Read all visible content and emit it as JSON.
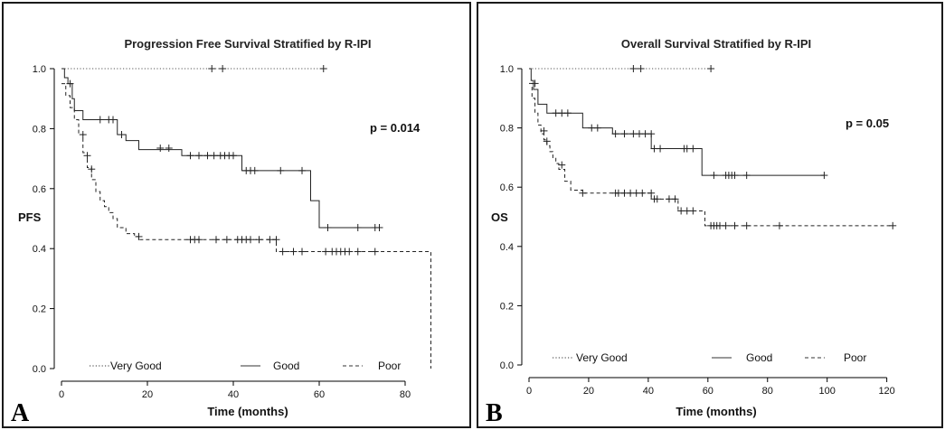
{
  "panels": [
    {
      "id": "A",
      "letter": "A",
      "pvalue": "p = 0.014"
    },
    {
      "id": "B",
      "letter": "B",
      "pvalue": "p = 0.05"
    }
  ],
  "legend": {
    "very_good": "Very Good",
    "good": "Good",
    "poor": "Poor"
  },
  "chart_data": [
    {
      "type": "line",
      "subtype": "kaplan-meier",
      "title": "Progression Free Survival Stratified by R-IPI",
      "xlabel": "Time (months)",
      "ylabel": "PFS",
      "xlim": [
        0,
        88
      ],
      "ylim": [
        0,
        1.0
      ],
      "xticks": [
        0,
        20,
        40,
        60,
        80
      ],
      "yticks": [
        0.0,
        0.2,
        0.4,
        0.6,
        0.8,
        1.0
      ],
      "ytick_labels": [
        "0.0",
        "0.2",
        "0.4",
        "0.6",
        "0.8",
        "1.0"
      ],
      "legend_position": "bottom",
      "grid": false,
      "series": [
        {
          "name": "Very Good",
          "dash": "dotted",
          "steps": [
            [
              0,
              1.0
            ],
            [
              61,
              1.0
            ]
          ],
          "censors": [
            [
              35,
              1.0
            ],
            [
              37.5,
              1.0
            ],
            [
              61,
              1.0
            ]
          ]
        },
        {
          "name": "Good",
          "dash": "solid",
          "steps": [
            [
              0,
              1.0
            ],
            [
              0.7,
              0.97
            ],
            [
              1.5,
              0.95
            ],
            [
              2.5,
              0.9
            ],
            [
              3,
              0.86
            ],
            [
              5,
              0.83
            ],
            [
              13,
              0.78
            ],
            [
              15,
              0.76
            ],
            [
              18,
              0.73
            ],
            [
              28,
              0.71
            ],
            [
              42,
              0.66
            ],
            [
              58,
              0.56
            ],
            [
              60,
              0.47
            ],
            [
              74,
              0.47
            ]
          ],
          "censors": [
            [
              2,
              0.95
            ],
            [
              9,
              0.83
            ],
            [
              11,
              0.83
            ],
            [
              12,
              0.83
            ],
            [
              14,
              0.78
            ],
            [
              23,
              0.735
            ],
            [
              25,
              0.735
            ],
            [
              30,
              0.71
            ],
            [
              32,
              0.71
            ],
            [
              34,
              0.71
            ],
            [
              35.5,
              0.71
            ],
            [
              37,
              0.71
            ],
            [
              38,
              0.71
            ],
            [
              39,
              0.71
            ],
            [
              40,
              0.71
            ],
            [
              43,
              0.66
            ],
            [
              44,
              0.66
            ],
            [
              45,
              0.66
            ],
            [
              51,
              0.66
            ],
            [
              56,
              0.66
            ],
            [
              62,
              0.47
            ],
            [
              69,
              0.47
            ],
            [
              73,
              0.47
            ],
            [
              74,
              0.47
            ]
          ]
        },
        {
          "name": "Poor",
          "dash": "dashed",
          "steps": [
            [
              0,
              0.95
            ],
            [
              1,
              0.91
            ],
            [
              2,
              0.87
            ],
            [
              3,
              0.83
            ],
            [
              4,
              0.78
            ],
            [
              5,
              0.72
            ],
            [
              6,
              0.67
            ],
            [
              7,
              0.63
            ],
            [
              8,
              0.59
            ],
            [
              9,
              0.56
            ],
            [
              10,
              0.54
            ],
            [
              11,
              0.52
            ],
            [
              12,
              0.5
            ],
            [
              13,
              0.47
            ],
            [
              15,
              0.45
            ],
            [
              17,
              0.44
            ],
            [
              18,
              0.43
            ],
            [
              50,
              0.39
            ],
            [
              86,
              0.39
            ],
            [
              86,
              0.0
            ]
          ],
          "censors": [
            [
              5,
              0.78
            ],
            [
              6,
              0.71
            ],
            [
              7,
              0.665
            ],
            [
              18,
              0.44
            ],
            [
              30,
              0.43
            ],
            [
              31,
              0.43
            ],
            [
              32,
              0.43
            ],
            [
              36,
              0.43
            ],
            [
              38.5,
              0.43
            ],
            [
              41,
              0.43
            ],
            [
              42,
              0.43
            ],
            [
              43,
              0.43
            ],
            [
              44,
              0.43
            ],
            [
              46,
              0.43
            ],
            [
              48.5,
              0.43
            ],
            [
              50,
              0.43
            ],
            [
              51.5,
              0.39
            ],
            [
              54,
              0.39
            ],
            [
              56,
              0.39
            ],
            [
              61.5,
              0.39
            ],
            [
              63,
              0.39
            ],
            [
              64,
              0.39
            ],
            [
              65,
              0.39
            ],
            [
              66,
              0.39
            ],
            [
              67,
              0.39
            ],
            [
              69,
              0.39
            ],
            [
              73,
              0.39
            ]
          ]
        }
      ]
    },
    {
      "type": "line",
      "subtype": "kaplan-meier",
      "title": "Overall Survival Stratified by R-IPI",
      "xlabel": "Time (months)",
      "ylabel": "OS",
      "xlim": [
        0,
        128
      ],
      "ylim": [
        0,
        1.0
      ],
      "xticks": [
        0,
        20,
        40,
        60,
        80,
        100,
        120
      ],
      "yticks": [
        0.0,
        0.2,
        0.4,
        0.6,
        0.8,
        1.0
      ],
      "ytick_labels": [
        "0.0",
        "0.2",
        "0.4",
        "0.6",
        "0.8",
        "1.0"
      ],
      "legend_position": "bottom",
      "grid": false,
      "series": [
        {
          "name": "Very Good",
          "dash": "dotted",
          "steps": [
            [
              0,
              1.0
            ],
            [
              61,
              1.0
            ]
          ],
          "censors": [
            [
              35,
              1.0
            ],
            [
              37.5,
              1.0
            ],
            [
              61,
              1.0
            ]
          ]
        },
        {
          "name": "Good",
          "dash": "solid",
          "steps": [
            [
              0,
              1.0
            ],
            [
              0.7,
              0.96
            ],
            [
              1.5,
              0.93
            ],
            [
              3,
              0.88
            ],
            [
              6,
              0.85
            ],
            [
              18,
              0.8
            ],
            [
              28,
              0.78
            ],
            [
              41,
              0.73
            ],
            [
              58,
              0.64
            ],
            [
              99,
              0.64
            ]
          ],
          "censors": [
            [
              2,
              0.95
            ],
            [
              9,
              0.85
            ],
            [
              11,
              0.85
            ],
            [
              13,
              0.85
            ],
            [
              21,
              0.8
            ],
            [
              23,
              0.8
            ],
            [
              29,
              0.78
            ],
            [
              32,
              0.78
            ],
            [
              35,
              0.78
            ],
            [
              37,
              0.78
            ],
            [
              39,
              0.78
            ],
            [
              41,
              0.78
            ],
            [
              42,
              0.73
            ],
            [
              44,
              0.73
            ],
            [
              52,
              0.73
            ],
            [
              53,
              0.73
            ],
            [
              55,
              0.73
            ],
            [
              62,
              0.64
            ],
            [
              66,
              0.64
            ],
            [
              67,
              0.64
            ],
            [
              68,
              0.64
            ],
            [
              69,
              0.64
            ],
            [
              73,
              0.64
            ],
            [
              99,
              0.64
            ]
          ]
        },
        {
          "name": "Poor",
          "dash": "dashed",
          "steps": [
            [
              0,
              0.95
            ],
            [
              1,
              0.9
            ],
            [
              2,
              0.85
            ],
            [
              3,
              0.81
            ],
            [
              4,
              0.78
            ],
            [
              5,
              0.76
            ],
            [
              6,
              0.74
            ],
            [
              7,
              0.72
            ],
            [
              8,
              0.7
            ],
            [
              9,
              0.68
            ],
            [
              10,
              0.66
            ],
            [
              12,
              0.62
            ],
            [
              14,
              0.59
            ],
            [
              18,
              0.58
            ],
            [
              38,
              0.58
            ],
            [
              41,
              0.56
            ],
            [
              50,
              0.52
            ],
            [
              59,
              0.47
            ],
            [
              122,
              0.47
            ]
          ],
          "censors": [
            [
              5,
              0.79
            ],
            [
              6,
              0.755
            ],
            [
              11,
              0.675
            ],
            [
              18,
              0.58
            ],
            [
              29,
              0.58
            ],
            [
              30,
              0.58
            ],
            [
              32,
              0.58
            ],
            [
              34,
              0.58
            ],
            [
              36,
              0.58
            ],
            [
              38,
              0.58
            ],
            [
              41,
              0.58
            ],
            [
              42,
              0.56
            ],
            [
              43,
              0.56
            ],
            [
              47,
              0.56
            ],
            [
              49,
              0.56
            ],
            [
              51,
              0.52
            ],
            [
              53,
              0.52
            ],
            [
              55,
              0.52
            ],
            [
              61,
              0.47
            ],
            [
              62,
              0.47
            ],
            [
              63,
              0.47
            ],
            [
              64,
              0.47
            ],
            [
              66,
              0.47
            ],
            [
              69,
              0.47
            ],
            [
              73,
              0.47
            ],
            [
              84,
              0.47
            ],
            [
              122,
              0.47
            ]
          ]
        }
      ]
    }
  ]
}
